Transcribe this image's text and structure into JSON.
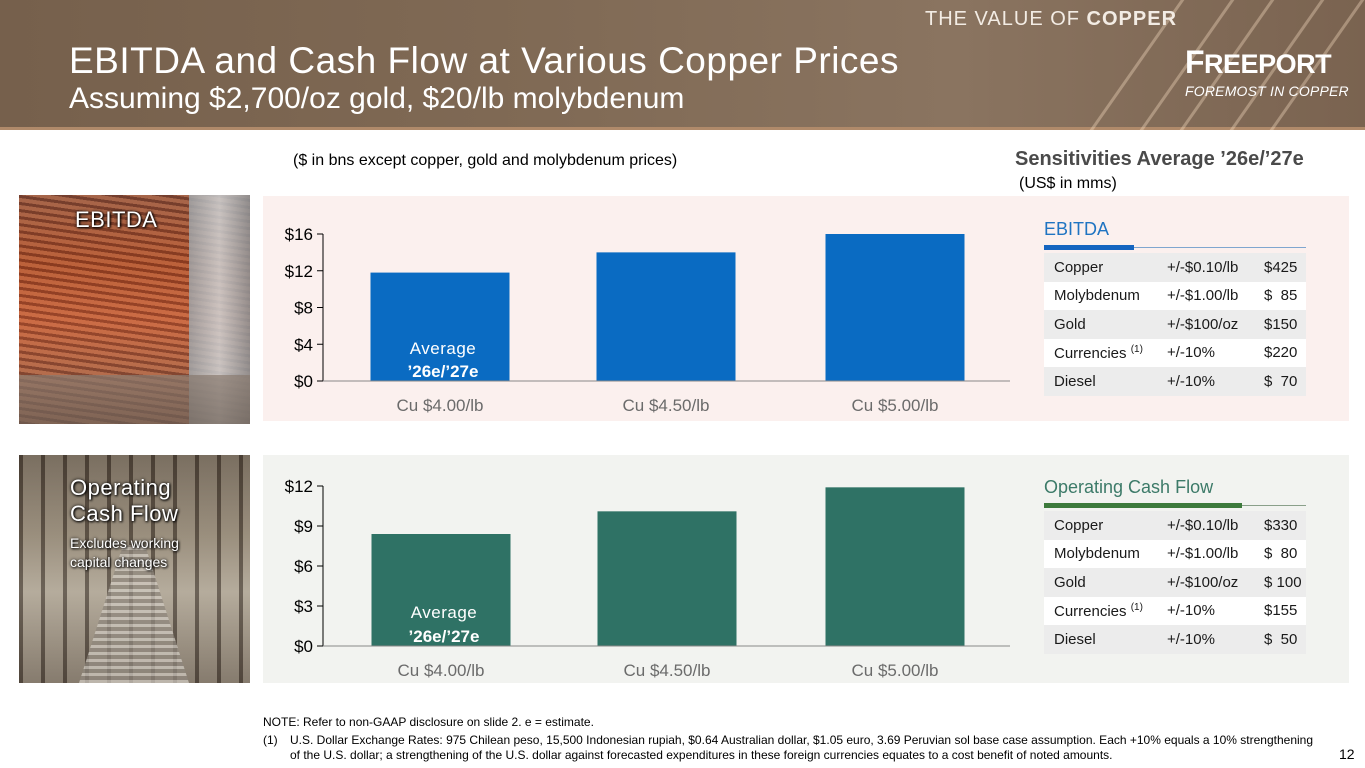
{
  "header": {
    "tagline_pre": "THE VALUE OF ",
    "tagline_bold": "COPPER",
    "title": "EBITDA and Cash Flow at Various Copper Prices",
    "subtitle": "Assuming $2,700/oz gold, $20/lb molybdenum",
    "logo_initial": "F",
    "logo_rest": "REEPORT",
    "logo_slogan": "FOREMOST IN COPPER"
  },
  "units_note": "($ in bns except copper, gold and molybdenum prices)",
  "sensitivities": {
    "title": "Sensitivities Average ’26e/’27e",
    "subtitle": "(US$ in mms)",
    "ebitda": {
      "heading": "EBITDA",
      "rows": [
        {
          "item": "Copper",
          "sup": "",
          "change": "+/-$0.10/lb",
          "value": "$425"
        },
        {
          "item": "Molybdenum",
          "sup": "",
          "change": "+/-$1.00/lb",
          "value": "$  85"
        },
        {
          "item": "Gold",
          "sup": "",
          "change": "+/-$100/oz",
          "value": "$150"
        },
        {
          "item": "Currencies ",
          "sup": "(1)",
          "change": "+/-10%",
          "value": "$220"
        },
        {
          "item": "Diesel",
          "sup": "",
          "change": "+/-10%",
          "value": "$  70"
        }
      ]
    },
    "ocf": {
      "heading": "Operating Cash Flow",
      "rows": [
        {
          "item": "Copper",
          "sup": "",
          "change": "+/-$0.10/lb",
          "value": "$330"
        },
        {
          "item": "Molybdenum",
          "sup": "",
          "change": "+/-$1.00/lb",
          "value": "$  80"
        },
        {
          "item": "Gold",
          "sup": "",
          "change": "+/-$100/oz",
          "value": "$ 100"
        },
        {
          "item": "Currencies ",
          "sup": "(1)",
          "change": "+/-10%",
          "value": "$155"
        },
        {
          "item": "Diesel",
          "sup": "",
          "change": "+/-10%",
          "value": "$  50"
        }
      ]
    }
  },
  "photos": {
    "ebitda_label": "EBITDA",
    "ocf_label_line1": "Operating",
    "ocf_label_line2": "Cash Flow",
    "ocf_sub_line1": "Excludes working",
    "ocf_sub_line2": "capital changes"
  },
  "chart_data": [
    {
      "type": "bar",
      "title": "",
      "categories": [
        "Cu $4.00/lb",
        "Cu $4.50/lb",
        "Cu $5.00/lb"
      ],
      "values": [
        11.8,
        14.0,
        16.0
      ],
      "ylim": [
        0,
        16
      ],
      "yticks": [
        0,
        4,
        8,
        12,
        16
      ],
      "ytick_labels": [
        "$0",
        "$4",
        "$8",
        "$12",
        "$16"
      ],
      "bar_label_line1": "Average",
      "bar_label_line2": "’26e/’27e",
      "color": "#0a6bc2",
      "grid": false
    },
    {
      "type": "bar",
      "title": "",
      "categories": [
        "Cu $4.00/lb",
        "Cu $4.50/lb",
        "Cu $5.00/lb"
      ],
      "values": [
        8.4,
        10.1,
        11.9
      ],
      "ylim": [
        0,
        12
      ],
      "yticks": [
        0,
        3,
        6,
        9,
        12
      ],
      "ytick_labels": [
        "$0",
        "$3",
        "$6",
        "$9",
        "$12"
      ],
      "bar_label_line1": "Average",
      "bar_label_line2": "’26e/’27e",
      "color": "#2f7265",
      "grid": false
    }
  ],
  "notes": {
    "note": "NOTE: Refer to non-GAAP disclosure on slide 2. e = estimate.",
    "footnote_num": "(1)",
    "footnote_text": "U.S. Dollar Exchange Rates: 975 Chilean peso, 15,500 Indonesian rupiah, $0.64 Australian dollar, $1.05 euro, 3.69 Peruvian sol base case assumption. Each +10% equals a 10% strengthening of the U.S. dollar; a strengthening of the U.S. dollar against forecasted expenditures in these foreign currencies equates to a cost benefit of noted amounts."
  },
  "page_number": "12"
}
